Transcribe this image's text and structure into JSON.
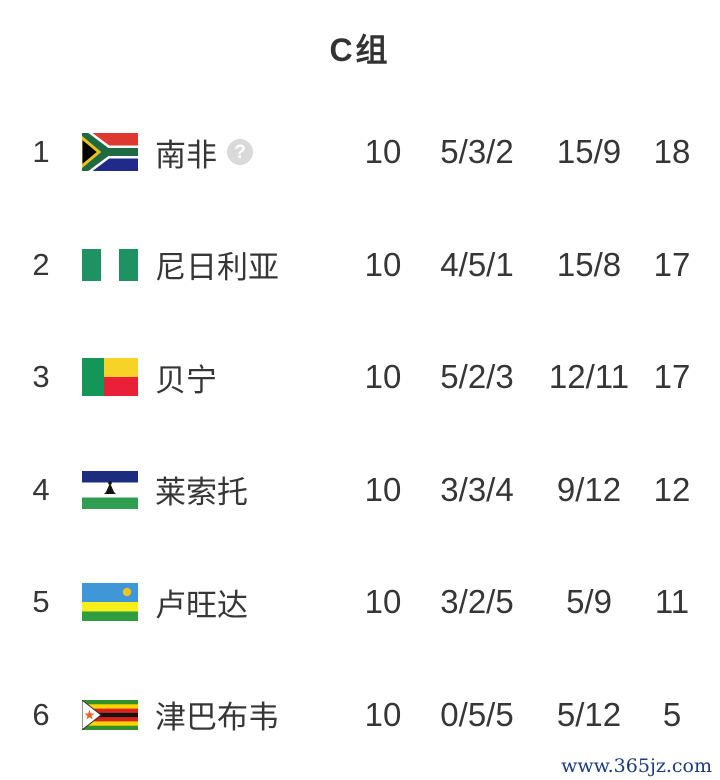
{
  "header": {
    "title": "C组"
  },
  "table": {
    "rows": [
      {
        "rank": "1",
        "team": "南非",
        "flag": "south-africa",
        "has_help": true,
        "played": "10",
        "record": "5/3/2",
        "goals": "15/9",
        "points": "18"
      },
      {
        "rank": "2",
        "team": "尼日利亚",
        "flag": "nigeria",
        "has_help": false,
        "played": "10",
        "record": "4/5/1",
        "goals": "15/8",
        "points": "17"
      },
      {
        "rank": "3",
        "team": "贝宁",
        "flag": "benin",
        "has_help": false,
        "played": "10",
        "record": "5/2/3",
        "goals": "12/11",
        "points": "17"
      },
      {
        "rank": "4",
        "team": "莱索托",
        "flag": "lesotho",
        "has_help": false,
        "played": "10",
        "record": "3/3/4",
        "goals": "9/12",
        "points": "12"
      },
      {
        "rank": "5",
        "team": "卢旺达",
        "flag": "rwanda",
        "has_help": false,
        "played": "10",
        "record": "3/2/5",
        "goals": "5/9",
        "points": "11"
      },
      {
        "rank": "6",
        "team": "津巴布韦",
        "flag": "zimbabwe",
        "has_help": false,
        "played": "10",
        "record": "0/5/5",
        "goals": "5/12",
        "points": "5"
      }
    ]
  },
  "help_icon": {
    "glyph": "?"
  },
  "watermark": {
    "text": "www.365jz.com",
    "color": "#1b3b7c"
  },
  "colors": {
    "text": "#363636",
    "title": "#333333",
    "help_badge_bg": "#d9d9d9",
    "help_badge_glyph": "#ffffff"
  }
}
